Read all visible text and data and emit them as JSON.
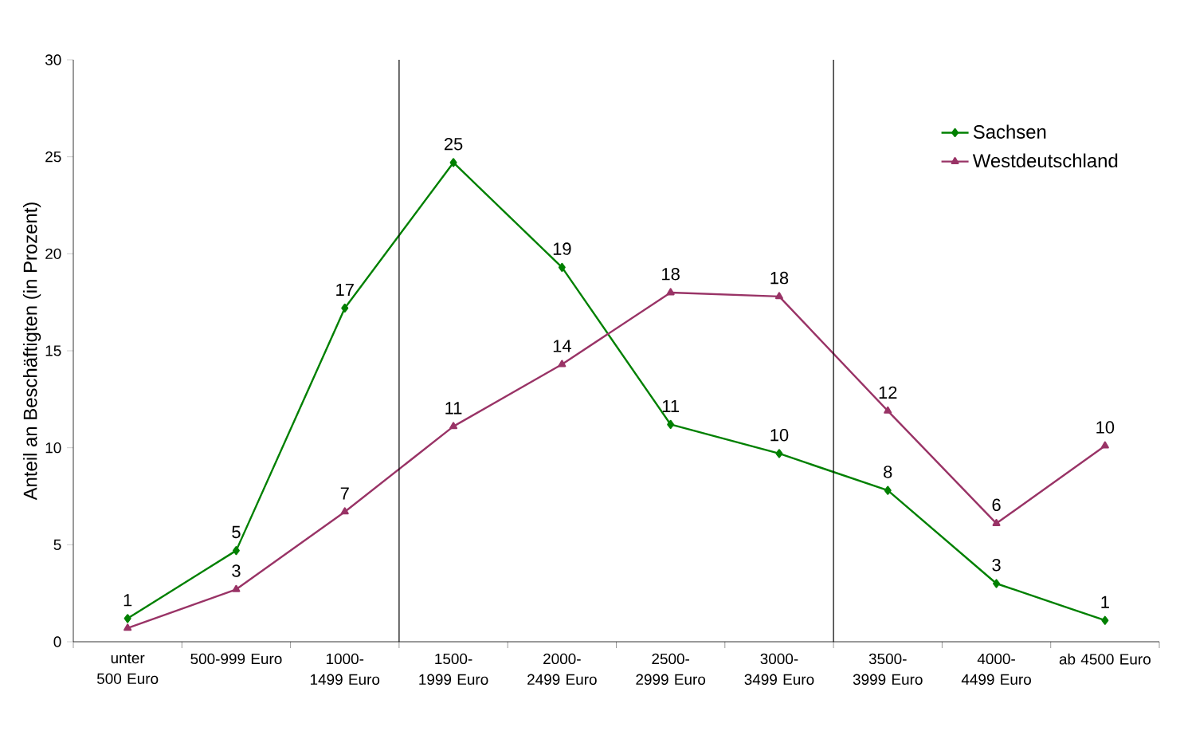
{
  "chart_data": {
    "type": "line",
    "ylabel": "Anteil an Beschäftigten (in Prozent)",
    "categories": [
      "unter 500 Euro",
      "500-999 Euro",
      "1000-1499 Euro",
      "1500-1999 Euro",
      "2000-2499 Euro",
      "2500-2999 Euro",
      "3000-3499 Euro",
      "3500-3999 Euro",
      "4000-4499 Euro",
      "ab 4500 Euro"
    ],
    "series": [
      {
        "name": "Sachsen",
        "color": "#008000",
        "marker": "diamond",
        "values": [
          1.2,
          4.7,
          17.2,
          24.7,
          19.3,
          11.2,
          9.7,
          7.8,
          3.0,
          1.1
        ],
        "value_labels": [
          "1",
          "5",
          "17",
          "25",
          "19",
          "11",
          "10",
          "8",
          "3",
          "1"
        ]
      },
      {
        "name": "Westdeutschland",
        "color": "#993366",
        "marker": "triangle",
        "values": [
          0.7,
          2.7,
          6.7,
          11.1,
          14.3,
          18.0,
          17.8,
          11.9,
          6.1,
          10.1
        ],
        "value_labels": [
          null,
          "3",
          "7",
          "11",
          "14",
          "18",
          "18",
          "12",
          "6",
          "10"
        ]
      }
    ],
    "ylim": [
      0,
      30
    ],
    "yticks": [
      0,
      5,
      10,
      15,
      20,
      25,
      30
    ],
    "grid": false,
    "legend": "top right"
  }
}
